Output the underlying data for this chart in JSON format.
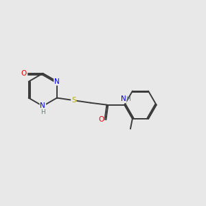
{
  "bg_color": "#e8e8e8",
  "bond_color": "#3a3a3a",
  "bond_width": 1.4,
  "atom_colors": {
    "N": "#0000ee",
    "O": "#ee0000",
    "S": "#bbaa00",
    "C": "#3a3a3a",
    "H": "#4a8888"
  },
  "font_size": 7.5,
  "figsize": [
    3.0,
    3.0
  ],
  "dpi": 100,
  "note_color": "#4a8888"
}
